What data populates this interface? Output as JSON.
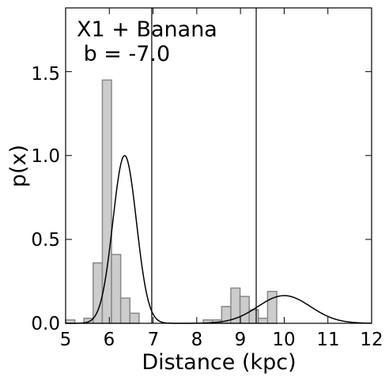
{
  "chart_data": {
    "type": "histogram",
    "xlabel": "Distance (kpc)",
    "ylabel": "p(x)",
    "xlim": [
      5,
      12
    ],
    "ylim": [
      0,
      1.88
    ],
    "x_ticks": [
      5,
      6,
      7,
      8,
      9,
      10,
      11,
      12
    ],
    "x_tick_labels": [
      "5",
      "6",
      "7",
      "8",
      "9",
      "10",
      "11",
      "12"
    ],
    "y_ticks": [
      0.0,
      0.5,
      1.0,
      1.5
    ],
    "y_tick_labels": [
      "0.0",
      "0.5",
      "1.0",
      "1.5"
    ],
    "grid": false,
    "annotation": {
      "line1": "X1 + Banana",
      "line2": " b = -7.0"
    },
    "histogram": {
      "bin_width": 0.21,
      "bin_edges": [
        5.0,
        5.21,
        5.42,
        5.63,
        5.84,
        6.05,
        6.26,
        6.47,
        6.68,
        6.89,
        7.1,
        7.31,
        7.52,
        7.73,
        7.94,
        8.15,
        8.36,
        8.57,
        8.78,
        8.99,
        9.2,
        9.41,
        9.62,
        9.83,
        10.04,
        10.25,
        10.46,
        10.67,
        10.88,
        11.09
      ],
      "values": [
        0.02,
        0.0,
        0.03,
        0.36,
        1.45,
        0.41,
        0.15,
        0.06,
        0.0,
        0.0,
        0.0,
        0.0,
        0.0,
        0.0,
        0.0,
        0.02,
        0.02,
        0.1,
        0.21,
        0.16,
        0.08,
        0.03,
        0.19,
        0.0,
        0.0,
        0.0,
        0.0,
        0.0,
        0.0
      ],
      "color": "#cccccc",
      "edge_color": "#888888"
    },
    "fit_components": [
      {
        "mean": 6.35,
        "sigma": 0.27,
        "amplitude": 1.0
      },
      {
        "mean": 10.0,
        "sigma": 0.6,
        "amplitude": 0.165
      }
    ],
    "vertical_lines": [
      6.97,
      9.36
    ]
  }
}
